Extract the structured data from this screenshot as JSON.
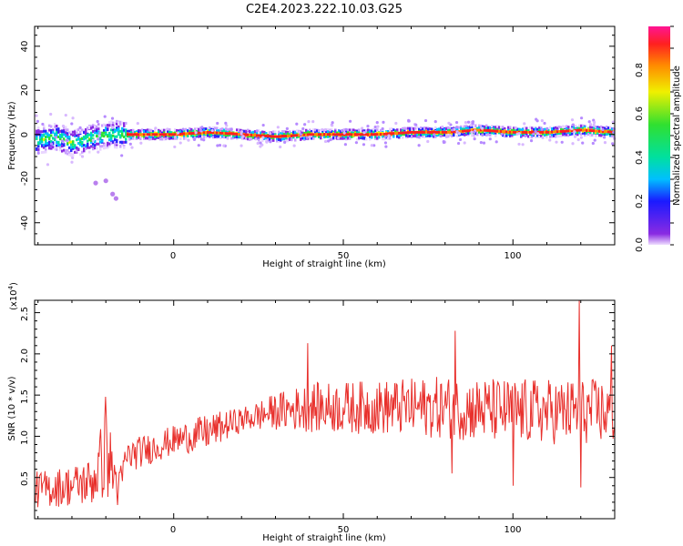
{
  "title": "C2E4.2023.222.10.03.G25",
  "chart_data": [
    {
      "type": "heatmap",
      "xlabel": "Height of straight line (km)",
      "ylabel": "Frequency (Hz)",
      "xlim": [
        -41,
        130
      ],
      "ylim": [
        -50,
        49
      ],
      "xticks": [
        "0",
        "50",
        "100"
      ],
      "yticks": [
        "-40",
        "-20",
        "0",
        "20",
        "40"
      ],
      "colorbar": {
        "label": "Normalized spectral amplitude",
        "range": [
          0,
          1
        ],
        "ticks": [
          "0.0",
          "0.2",
          "0.4",
          "0.6",
          "0.8"
        ]
      },
      "ridge_frequency_hz": [
        [
          -41,
          -3
        ],
        [
          -35,
          -1
        ],
        [
          -30,
          -4
        ],
        [
          -25,
          -2
        ],
        [
          -20,
          0
        ],
        [
          -15,
          0
        ],
        [
          -10,
          0
        ],
        [
          0,
          0
        ],
        [
          10,
          1
        ],
        [
          20,
          0
        ],
        [
          30,
          -1
        ],
        [
          40,
          0
        ],
        [
          50,
          0
        ],
        [
          60,
          0
        ],
        [
          70,
          1
        ],
        [
          80,
          1
        ],
        [
          90,
          2
        ],
        [
          100,
          1
        ],
        [
          110,
          1
        ],
        [
          120,
          2
        ],
        [
          130,
          1
        ]
      ]
    },
    {
      "type": "line",
      "xlabel": "Height of straight line (km)",
      "ylabel": "SNR (10 * v/v)",
      "y_exponent": "(x10",
      "y_exponent_power": "4",
      "y_exponent_close": ")",
      "xlim": [
        -41,
        130
      ],
      "ylim": [
        0,
        2.65
      ],
      "xticks": [
        "0",
        "50",
        "100"
      ],
      "yticks": [
        "0.5",
        "1.0",
        "1.5",
        "2.0",
        "2.5"
      ],
      "series_color": "#e8302c",
      "envelope": [
        {
          "x": -41,
          "base": 0.35,
          "amp": 0.22
        },
        {
          "x": -30,
          "base": 0.4,
          "amp": 0.25
        },
        {
          "x": -24,
          "base": 0.45,
          "amp": 0.3
        },
        {
          "x": -20,
          "base": 0.8,
          "amp": 0.55
        },
        {
          "x": -16,
          "base": 0.35,
          "amp": 0.25
        },
        {
          "x": -14,
          "base": 0.75,
          "amp": 0.2
        },
        {
          "x": 0,
          "base": 0.95,
          "amp": 0.18
        },
        {
          "x": 10,
          "base": 1.05,
          "amp": 0.22
        },
        {
          "x": 20,
          "base": 1.2,
          "amp": 0.15
        },
        {
          "x": 30,
          "base": 1.3,
          "amp": 0.22
        },
        {
          "x": 40,
          "base": 1.35,
          "amp": 0.3
        },
        {
          "x": 60,
          "base": 1.35,
          "amp": 0.33
        },
        {
          "x": 80,
          "base": 1.35,
          "amp": 0.38
        },
        {
          "x": 100,
          "base": 1.3,
          "amp": 0.4
        },
        {
          "x": 130,
          "base": 1.3,
          "amp": 0.4
        }
      ],
      "spikes": [
        {
          "x": -20,
          "y": 1.48
        },
        {
          "x": 39.5,
          "y": 2.13
        },
        {
          "x": 83,
          "y": 2.28
        },
        {
          "x": 119.5,
          "y": 2.65
        },
        {
          "x": 120,
          "y": 0.38
        },
        {
          "x": 100,
          "y": 0.4
        },
        {
          "x": 82,
          "y": 0.55
        },
        {
          "x": 129,
          "y": 2.1
        }
      ]
    }
  ]
}
